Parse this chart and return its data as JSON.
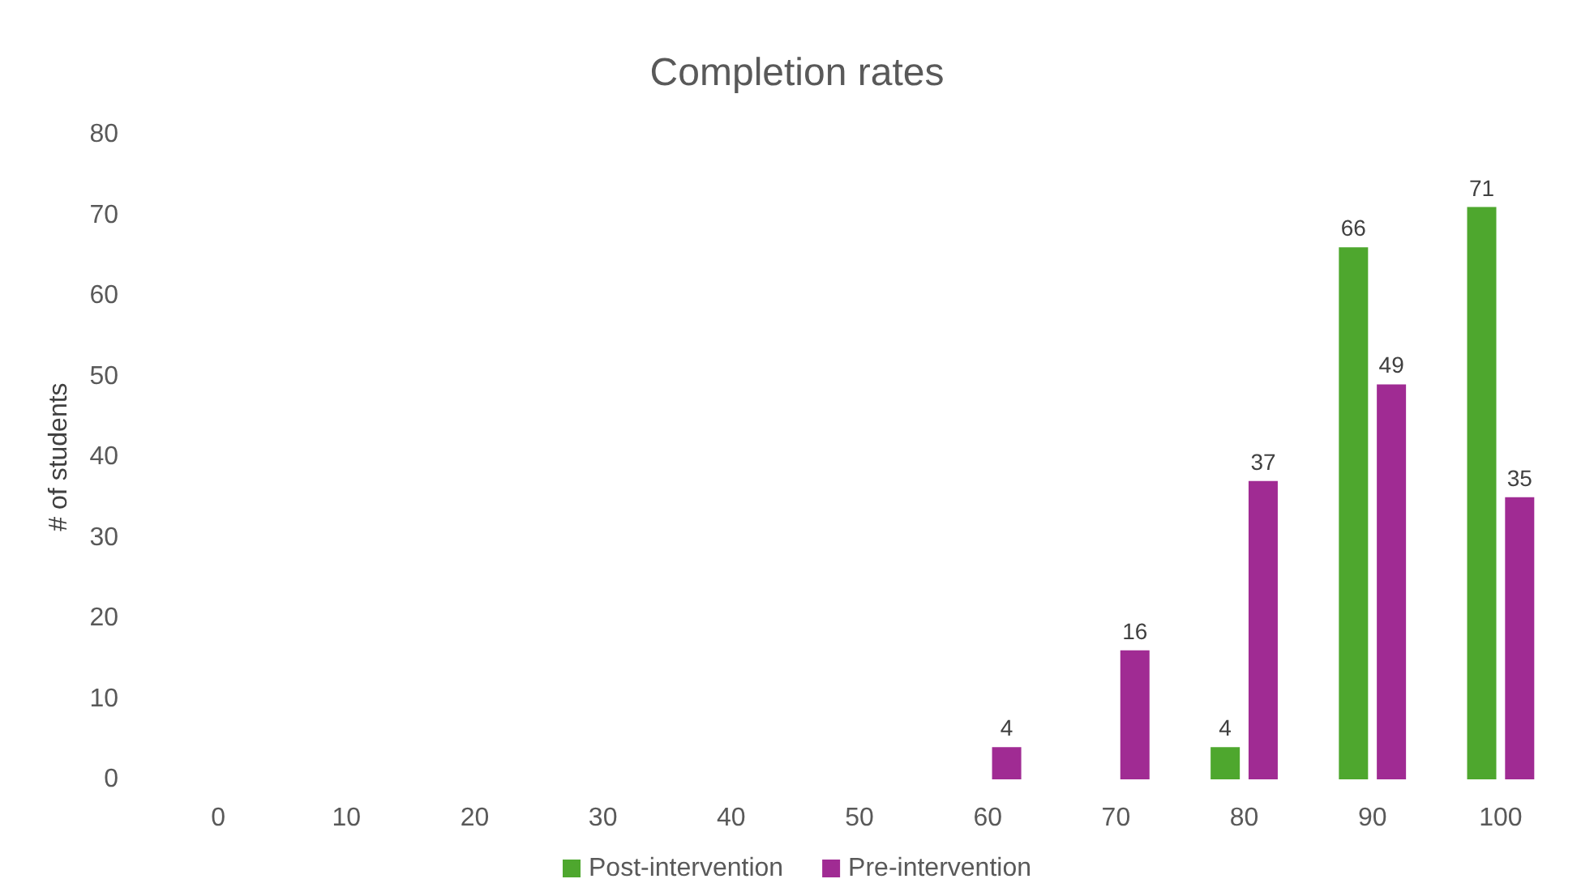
{
  "chart_data": {
    "type": "bar",
    "title": "Completion rates",
    "ylabel": "# of students",
    "categories": [
      "0",
      "10",
      "20",
      "30",
      "40",
      "50",
      "60",
      "70",
      "80",
      "90",
      "100"
    ],
    "series": [
      {
        "name": "Post-intervention",
        "color": "#4ea72e",
        "values": [
          null,
          null,
          null,
          null,
          null,
          null,
          null,
          null,
          4,
          66,
          71
        ]
      },
      {
        "name": "Pre-intervention",
        "color": "#a02b93",
        "values": [
          null,
          null,
          null,
          null,
          null,
          null,
          4,
          16,
          37,
          49,
          35
        ]
      }
    ],
    "ylim": [
      0,
      80
    ],
    "yticks": [
      0,
      10,
      20,
      30,
      40,
      50,
      60,
      70,
      80
    ],
    "grid": false,
    "legend": "bottom",
    "data_labels": true
  }
}
